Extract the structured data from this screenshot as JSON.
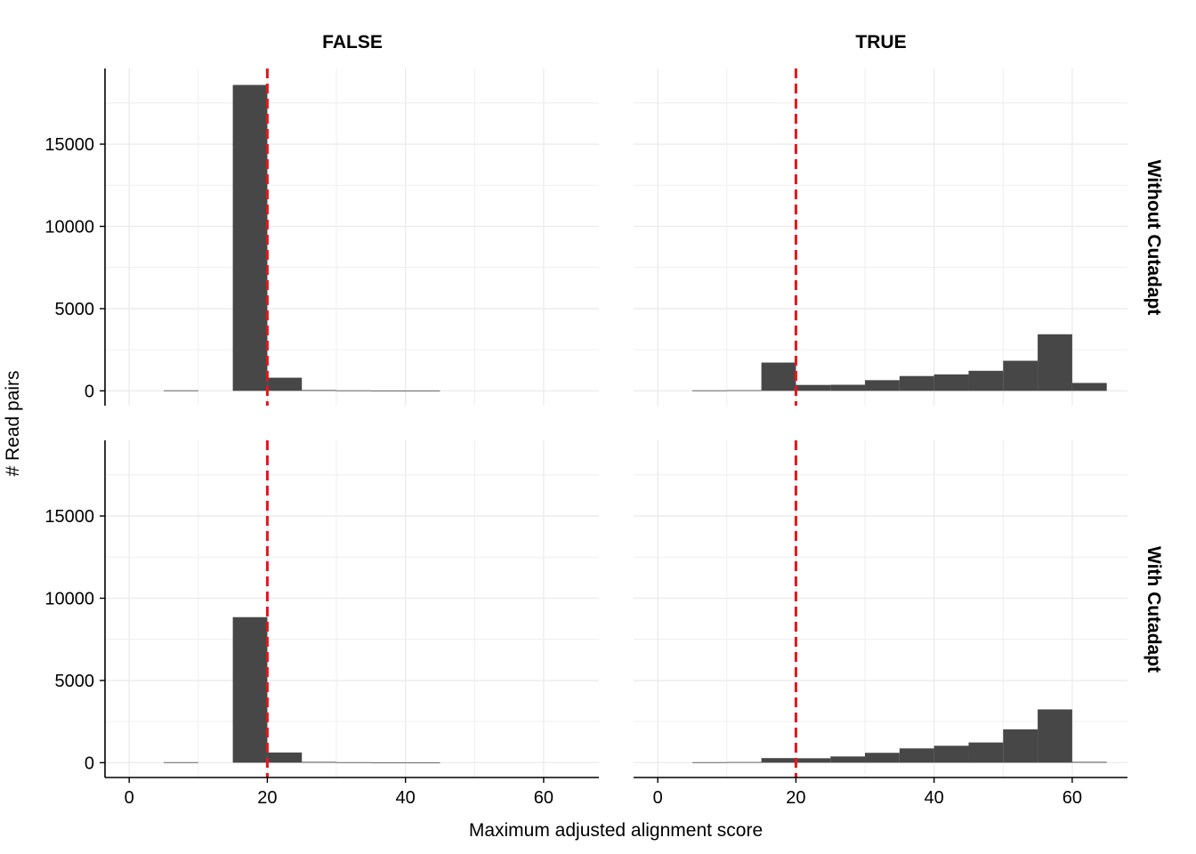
{
  "chart_data": {
    "type": "bar",
    "subtype": "faceted-histogram",
    "xlabel": "Maximum adjusted alignment score",
    "ylabel": "# Read pairs",
    "col_facets": [
      "FALSE",
      "TRUE"
    ],
    "row_facets": [
      "Without Cutadapt",
      "With Cutadapt"
    ],
    "xlim": [
      -3.5,
      68
    ],
    "ylim": [
      -900,
      19600
    ],
    "x_ticks": [
      0,
      20,
      40,
      60
    ],
    "y_ticks": [
      0,
      5000,
      10000,
      15000
    ],
    "bin_edges": [
      0,
      5,
      10,
      15,
      20,
      25,
      30,
      35,
      40,
      45,
      50,
      55,
      60,
      65
    ],
    "bar_color": "#474747",
    "threshold": {
      "x": 20,
      "color": "#e8141b",
      "style": "dashed"
    },
    "grid": true,
    "panels": [
      {
        "row": "Without Cutadapt",
        "col": "FALSE",
        "values": [
          0,
          30,
          0,
          18600,
          800,
          50,
          30,
          20,
          10,
          0,
          0,
          0,
          0
        ]
      },
      {
        "row": "Without Cutadapt",
        "col": "TRUE",
        "values": [
          0,
          30,
          40,
          1720,
          360,
          370,
          650,
          900,
          1000,
          1220,
          1830,
          3440,
          480
        ]
      },
      {
        "row": "With Cutadapt",
        "col": "FALSE",
        "values": [
          0,
          30,
          0,
          8850,
          620,
          50,
          30,
          20,
          10,
          0,
          0,
          0,
          0
        ]
      },
      {
        "row": "With Cutadapt",
        "col": "TRUE",
        "values": [
          0,
          30,
          40,
          280,
          270,
          380,
          600,
          870,
          1030,
          1230,
          2030,
          3240,
          50
        ]
      }
    ]
  }
}
